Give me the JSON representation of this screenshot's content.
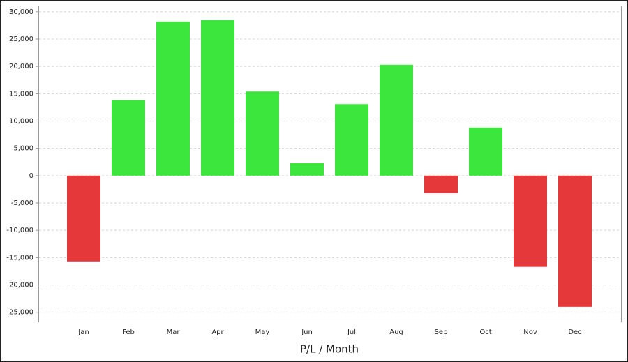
{
  "chart_data": {
    "type": "bar",
    "x_label": "P/L / Month",
    "categories": [
      "Jan",
      "Feb",
      "Mar",
      "Apr",
      "May",
      "Jun",
      "Jul",
      "Aug",
      "Sep",
      "Oct",
      "Nov",
      "Dec"
    ],
    "values": [
      -15700,
      13800,
      28200,
      28500,
      15400,
      2300,
      13100,
      20300,
      -3200,
      8800,
      -16700,
      -24000
    ],
    "positive_color": "#3de63d",
    "negative_color": "#e5383b",
    "ylim": [
      -26700,
      31000
    ],
    "yticks": [
      {
        "value": -25000,
        "label": "-25,000"
      },
      {
        "value": -20000,
        "label": "-20,000"
      },
      {
        "value": -15000,
        "label": "-15,000"
      },
      {
        "value": -10000,
        "label": "-10,000"
      },
      {
        "value": -5000,
        "label": "-5,000"
      },
      0,
      {
        "value": 5000,
        "label": "5,000"
      },
      {
        "value": 10000,
        "label": "10,000"
      },
      {
        "value": 15000,
        "label": "15,000"
      },
      {
        "value": 20000,
        "label": "20,000"
      },
      {
        "value": 25000,
        "label": "25,000"
      },
      {
        "value": 30000,
        "label": "30,000"
      }
    ],
    "grid": true
  }
}
